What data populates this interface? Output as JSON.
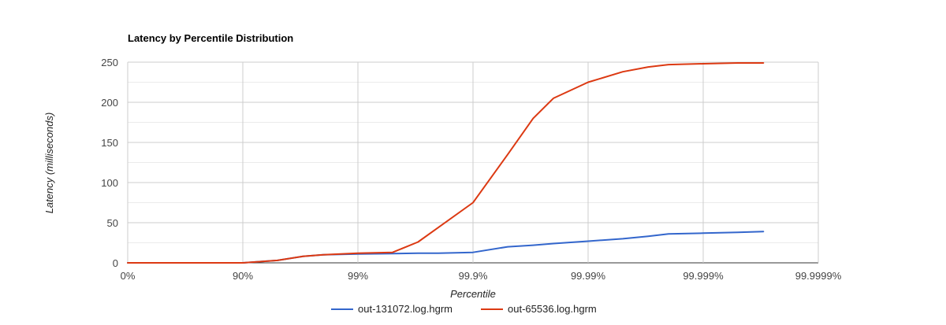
{
  "chart_data": {
    "type": "line",
    "title": "Latency by Percentile Distribution",
    "xlabel": "Percentile",
    "ylabel": "Latency (milliseconds)",
    "x_scale": "log-percentile",
    "x_ticks": [
      "0%",
      "90%",
      "99%",
      "99.9%",
      "99.99%",
      "99.999%",
      "99.9999%"
    ],
    "y_ticks": [
      "0",
      "50",
      "100",
      "150",
      "200",
      "250"
    ],
    "ylim": [
      0,
      250
    ],
    "grid": true,
    "legend_position": "bottom",
    "series": [
      {
        "name": "out-131072.log.hgrm",
        "color": "#3366cc",
        "x": [
          0,
          0.5,
          0.75,
          0.9,
          0.95,
          0.97,
          0.98,
          0.99,
          0.995,
          0.997,
          0.998,
          0.999,
          0.9995,
          0.9997,
          0.9998,
          0.9999,
          0.99995,
          0.99997,
          0.99998,
          0.99999,
          0.999995,
          0.999997
        ],
        "y": [
          0,
          0,
          0,
          0,
          3,
          8,
          10,
          11,
          11.5,
          12,
          12,
          13,
          20,
          22,
          24,
          27,
          30,
          33,
          36,
          37,
          38,
          39
        ]
      },
      {
        "name": "out-65536.log.hgrm",
        "color": "#dc3912",
        "x": [
          0,
          0.5,
          0.75,
          0.9,
          0.95,
          0.97,
          0.98,
          0.99,
          0.995,
          0.997,
          0.998,
          0.999,
          0.9995,
          0.9997,
          0.9998,
          0.9999,
          0.99995,
          0.99997,
          0.99998,
          0.99999,
          0.999995,
          0.999997
        ],
        "y": [
          0,
          0,
          0,
          0,
          3,
          8,
          10,
          12,
          13,
          26,
          44,
          75,
          135,
          180,
          205,
          225,
          238,
          244,
          247,
          248,
          249,
          249
        ]
      }
    ]
  }
}
